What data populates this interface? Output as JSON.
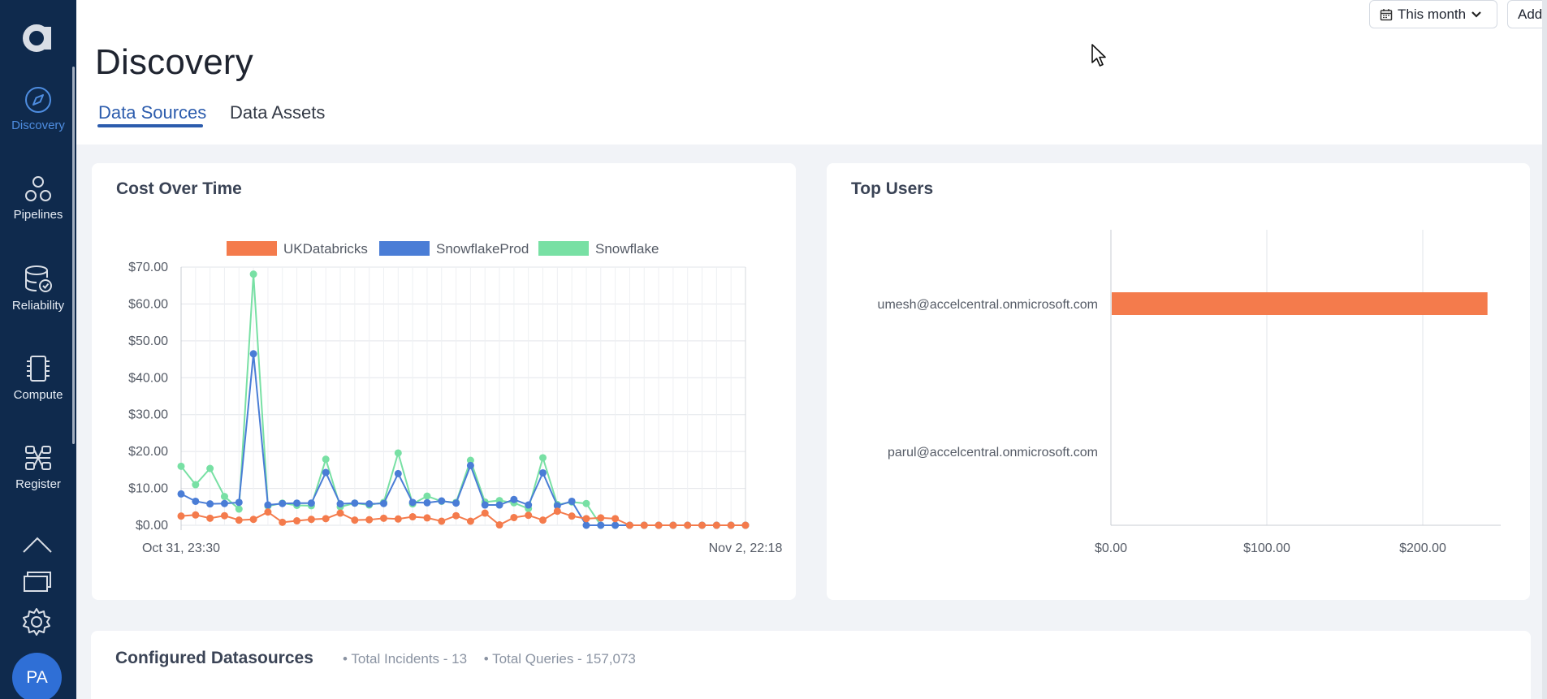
{
  "sidebar": {
    "logo_letter": "a",
    "items": [
      {
        "label": "Discovery",
        "icon": "compass-icon"
      },
      {
        "label": "Pipelines",
        "icon": "pipelines-icon"
      },
      {
        "label": "Reliability",
        "icon": "database-check-icon"
      },
      {
        "label": "Compute",
        "icon": "chip-icon"
      },
      {
        "label": "Register",
        "icon": "register-icon"
      }
    ],
    "bottom_icons": [
      "upload-cloud-icon",
      "windows-icon",
      "gear-icon"
    ],
    "avatar": "PA",
    "colors": {
      "bg": "#0f2a4d",
      "active": "#4e8de0"
    }
  },
  "header": {
    "title": "Discovery",
    "date_filter": "This month",
    "add_new": "Add New",
    "tabs": [
      {
        "label": "Data Sources",
        "active": true
      },
      {
        "label": "Data Assets",
        "active": false
      }
    ]
  },
  "cost_card": {
    "title": "Cost Over Time"
  },
  "users_card": {
    "title": "Top Users"
  },
  "configured": {
    "title": "Configured Datasources",
    "incidents": "• Total Incidents - 13",
    "queries": "• Total Queries - 157,073"
  },
  "chart_data": [
    {
      "type": "line",
      "title": "Cost Over Time",
      "x_tick_labels": [
        "Oct 31, 23:30",
        "Nov 2, 22:18"
      ],
      "y_tick_labels": [
        "$0.00",
        "$10.00",
        "$20.00",
        "$30.00",
        "$40.00",
        "$50.00",
        "$60.00",
        "$70.00"
      ],
      "ylim": [
        0,
        70
      ],
      "grid": true,
      "legend_position": "top",
      "series": [
        {
          "name": "UKDatabricks",
          "color": "#f47b4c",
          "values": [
            2.5,
            2.8,
            1.9,
            2.6,
            1.4,
            1.6,
            3.6,
            0.8,
            1.2,
            1.6,
            1.8,
            3.3,
            1.4,
            1.5,
            1.9,
            1.7,
            2.3,
            2,
            1.1,
            2.6,
            1.1,
            3.3,
            0.1,
            2.1,
            2.7,
            1.4,
            3.8,
            2.5,
            1.8,
            2,
            1.8,
            0,
            0,
            0,
            0,
            0,
            0,
            0,
            0,
            0
          ]
        },
        {
          "name": "SnowflakeProd",
          "color": "#4a7dd6",
          "values": [
            8.5,
            6.5,
            5.8,
            5.9,
            6.2,
            46.5,
            5.5,
            5.9,
            6,
            6,
            14.3,
            5.8,
            6,
            5.8,
            5.9,
            14,
            6.2,
            6.1,
            6.6,
            6,
            16.2,
            5.5,
            5.5,
            7,
            5.5,
            14.2,
            5.3,
            6.5,
            0,
            0,
            0,
            0,
            0,
            0,
            0,
            0,
            0,
            0,
            0,
            0
          ]
        },
        {
          "name": "Snowflake",
          "color": "#78e0a4",
          "values": [
            16,
            11,
            15.4,
            7.8,
            4.4,
            68.1,
            5.2,
            6,
            5.4,
            5.3,
            17.9,
            5,
            6,
            5.5,
            6.2,
            19.6,
            5.8,
            7.9,
            6.5,
            6.2,
            17.6,
            6.3,
            6.7,
            6.1,
            4.5,
            18.3,
            5.6,
            6.3,
            5.9,
            0,
            0,
            0,
            0,
            0,
            0,
            0,
            0,
            0,
            0,
            0
          ]
        }
      ]
    },
    {
      "type": "bar",
      "orientation": "horizontal",
      "title": "Top Users",
      "categories": [
        "umesh@accelcentral.onmicrosoft.com",
        "parul@accelcentral.onmicrosoft.com"
      ],
      "values": [
        241,
        0
      ],
      "x_tick_labels": [
        "$0.00",
        "$100.00",
        "$200.00"
      ],
      "xlim": [
        0,
        250
      ],
      "color": "#f47b4c",
      "grid": true
    }
  ]
}
